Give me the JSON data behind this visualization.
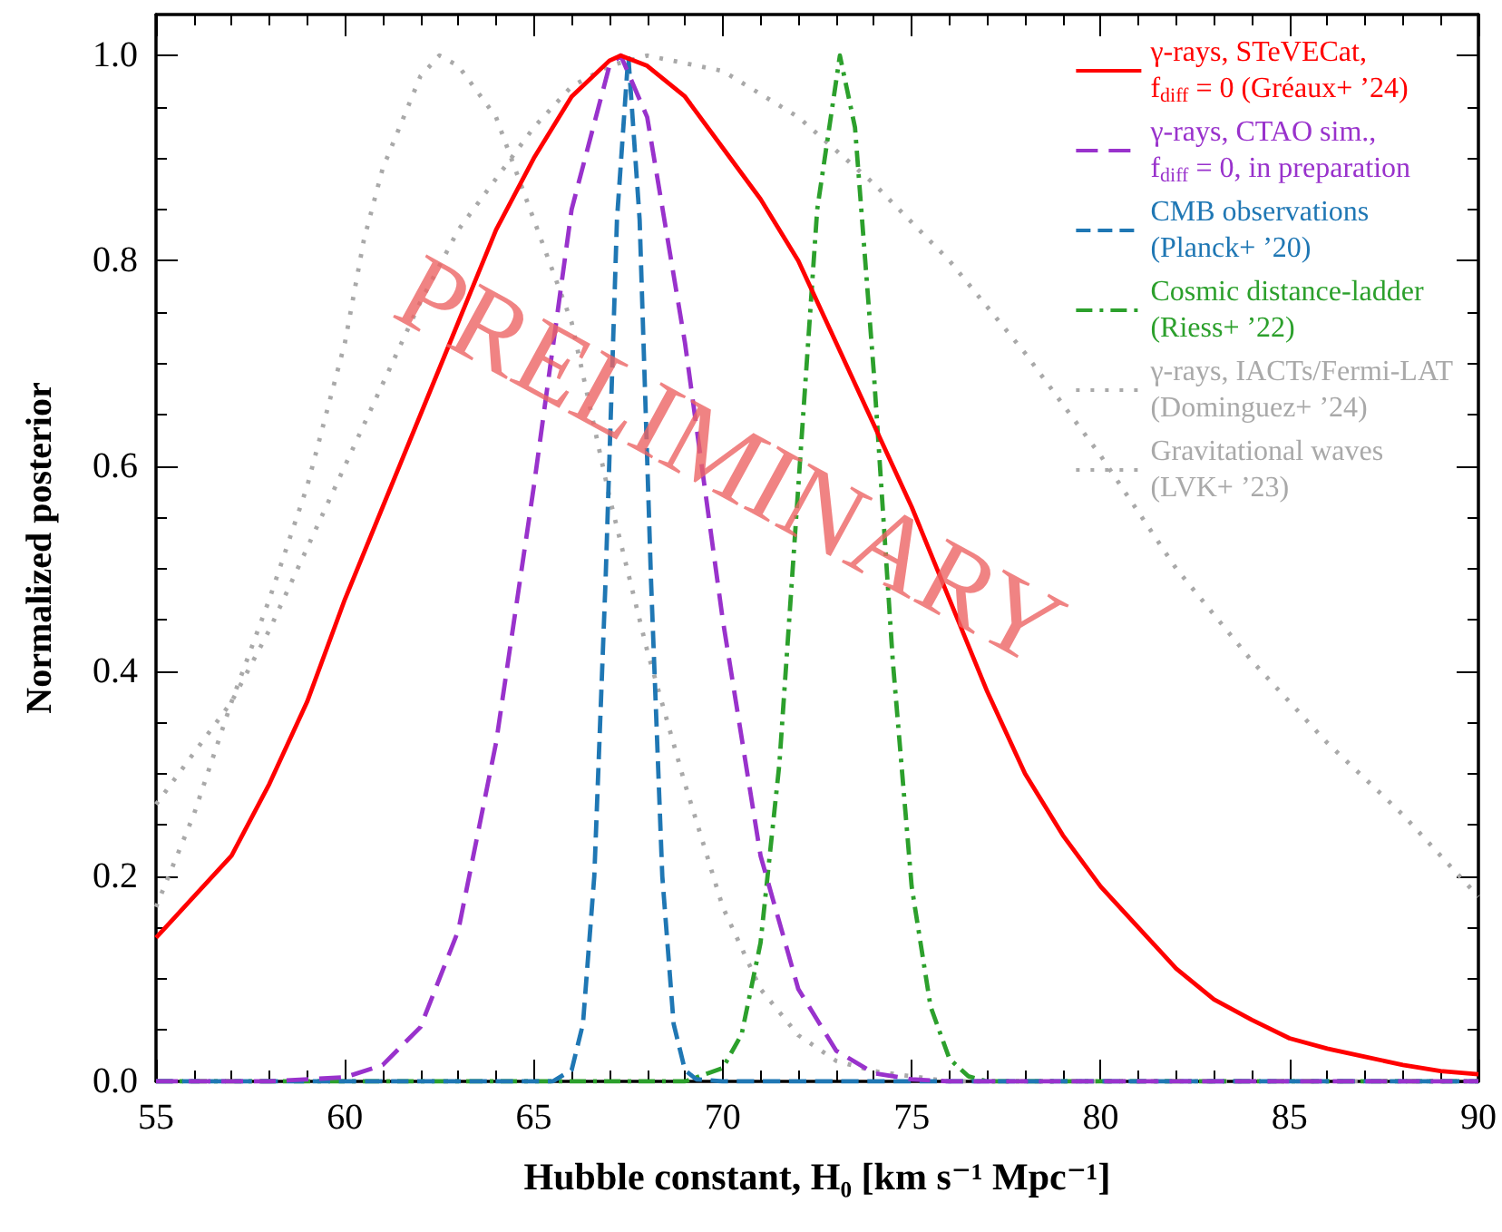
{
  "chart_data": {
    "type": "line",
    "xlabel": "Hubble constant, H₀ [km s⁻¹ Mpc⁻¹]",
    "ylabel": "Normalized posterior",
    "xlim": [
      55,
      90
    ],
    "xticks": [
      55,
      60,
      65,
      70,
      75,
      80,
      85,
      90
    ],
    "ylim": [
      0,
      1.04
    ],
    "yticks": [
      {
        "value": 0,
        "label": "0.0"
      },
      {
        "value": 0.2,
        "label": "0.2"
      },
      {
        "value": 0.4,
        "label": "0.4"
      },
      {
        "value": 0.6,
        "label": "0.6"
      },
      {
        "value": 0.8,
        "label": "0.8"
      },
      {
        "value": 1.0,
        "label": "1.0"
      }
    ],
    "grid": false,
    "legend": "top right",
    "marker": "none",
    "annotations": [
      "PRELIMINARY"
    ],
    "series": [
      {
        "name": "γ-rays, STeVECat,\nf$_{diff}$ = 0 (Gréaux+ ’24)",
        "color": "#ff0000",
        "line_style": "solid",
        "x": [
          55,
          56,
          57,
          58,
          59,
          60,
          61,
          62,
          63,
          64,
          65,
          66,
          67,
          67.3,
          68,
          69,
          70,
          71,
          72,
          73,
          74,
          75,
          76,
          77,
          78,
          79,
          80,
          81,
          82,
          83,
          84,
          85,
          86,
          87,
          88,
          89,
          90
        ],
        "values": [
          0.14,
          0.18,
          0.22,
          0.29,
          0.37,
          0.47,
          0.56,
          0.65,
          0.74,
          0.83,
          0.9,
          0.96,
          0.995,
          1.0,
          0.99,
          0.96,
          0.91,
          0.86,
          0.8,
          0.72,
          0.64,
          0.56,
          0.47,
          0.38,
          0.3,
          0.24,
          0.19,
          0.15,
          0.11,
          0.08,
          0.06,
          0.042,
          0.032,
          0.024,
          0.016,
          0.01,
          0.007
        ]
      },
      {
        "name": "γ-rays, CTAO sim.,\nf$_{diff}$ = 0, in preparation",
        "color": "#9932cc",
        "line_style": "dashed",
        "x": [
          55,
          58,
          60,
          61,
          62,
          63,
          64,
          65,
          66,
          67,
          67.3,
          68,
          69,
          70,
          71,
          72,
          73,
          74,
          75,
          76,
          90
        ],
        "values": [
          0,
          0,
          0.004,
          0.016,
          0.053,
          0.147,
          0.33,
          0.58,
          0.85,
          0.99,
          1.0,
          0.94,
          0.72,
          0.45,
          0.22,
          0.09,
          0.03,
          0.008,
          0.002,
          0,
          0
        ]
      },
      {
        "name": "CMB observations\n(Planck+ ’20)",
        "color": "#1f77b4",
        "line_style": "dashed",
        "x": [
          55,
          65.5,
          66,
          66.3,
          66.6,
          66.9,
          67.2,
          67.5,
          67.8,
          68.1,
          68.4,
          68.7,
          69,
          69.3,
          70,
          90
        ],
        "values": [
          0,
          0,
          0.011,
          0.056,
          0.2,
          0.49,
          0.84,
          1.0,
          0.84,
          0.49,
          0.2,
          0.056,
          0.011,
          0.002,
          0,
          0
        ]
      },
      {
        "name": "Cosmic distance-ladder\n(Riess+ ’22)",
        "color": "#2ca02c",
        "line_style": "dashdot",
        "x": [
          55,
          69,
          70,
          70.5,
          71,
          71.5,
          72,
          72.5,
          73.1,
          73.5,
          74,
          74.5,
          75,
          75.5,
          76,
          76.5,
          77,
          90
        ],
        "values": [
          0,
          0,
          0.013,
          0.046,
          0.135,
          0.31,
          0.58,
          0.85,
          1.0,
          0.93,
          0.69,
          0.41,
          0.19,
          0.073,
          0.022,
          0.005,
          0,
          0
        ]
      },
      {
        "name": "γ-rays, IACTs/Fermi-LAT\n(Dominguez+ ’24)",
        "color": "#a9a9a9",
        "line_style": "dotted",
        "x": [
          55,
          56,
          57,
          58,
          59,
          60,
          60.5,
          61,
          62,
          62.5,
          63,
          64,
          65,
          66,
          67,
          68,
          69,
          70,
          71,
          72,
          73,
          74,
          75,
          76,
          78,
          90
        ],
        "values": [
          0.17,
          0.26,
          0.37,
          0.47,
          0.58,
          0.72,
          0.82,
          0.89,
          0.98,
          1.0,
          0.99,
          0.94,
          0.84,
          0.74,
          0.57,
          0.42,
          0.29,
          0.17,
          0.09,
          0.045,
          0.02,
          0.01,
          0.005,
          0,
          0,
          0
        ]
      },
      {
        "name": "Gravitational waves\n(LVK+ ’23)",
        "color": "#a9a9a9",
        "line_style": "dotted",
        "x": [
          55,
          56,
          57,
          58,
          59,
          60,
          61,
          62,
          63,
          64,
          65,
          66,
          67,
          68,
          70,
          72,
          74,
          76,
          78,
          80,
          82,
          84,
          86,
          88,
          90
        ],
        "values": [
          0.27,
          0.32,
          0.37,
          0.44,
          0.52,
          0.6,
          0.68,
          0.76,
          0.83,
          0.88,
          0.93,
          0.97,
          0.99,
          1.0,
          0.985,
          0.94,
          0.875,
          0.8,
          0.71,
          0.61,
          0.5,
          0.41,
          0.33,
          0.26,
          0.18
        ]
      }
    ]
  }
}
